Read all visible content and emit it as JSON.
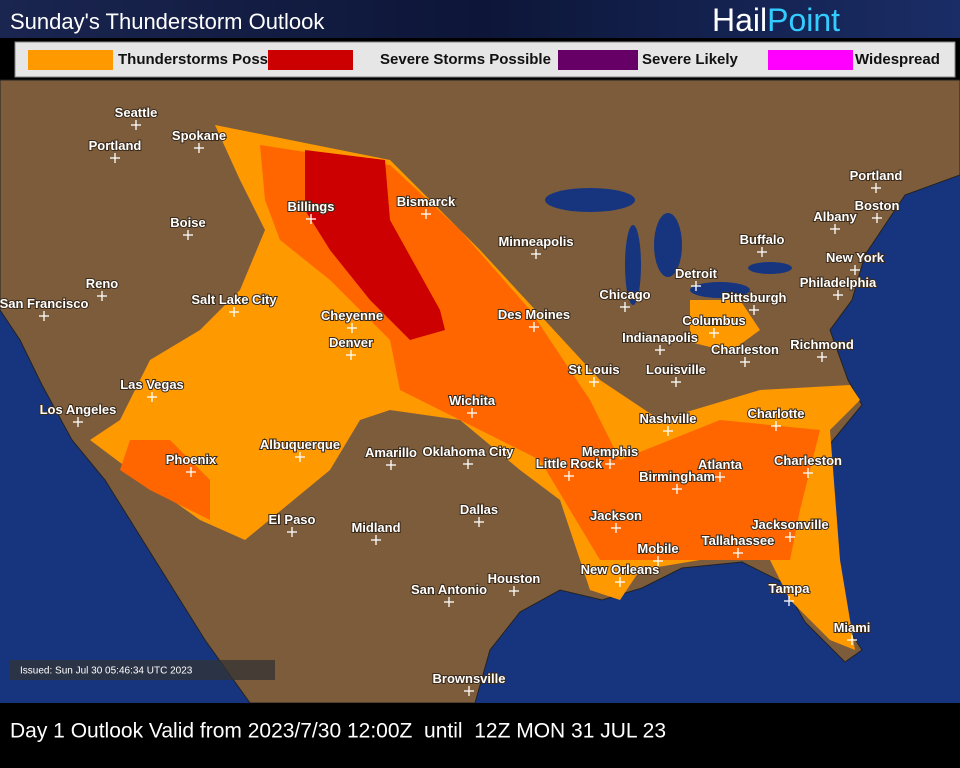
{
  "title": "Sunday's Thunderstorm Outlook",
  "logo": [
    "Hail",
    "Point"
  ],
  "legend": [
    {
      "name": "Thunderstorms Possible",
      "color": "#ff9900"
    },
    {
      "name": "Severe Storms Possible",
      "color": "#cc0000"
    },
    {
      "name": "Severe Likely",
      "color": "#660066"
    },
    {
      "name": "Widespread",
      "color": "#ff00ff"
    }
  ],
  "cities": [
    "Seattle",
    "Portland",
    "Spokane",
    "Boise",
    "Reno",
    "San Francisco",
    "Salt Lake City",
    "Billings",
    "Bismarck",
    "Minneapolis",
    "Cheyenne",
    "Denver",
    "Las Vegas",
    "Los Angeles",
    "Phoenix",
    "Albuquerque",
    "El Paso",
    "Amarillo",
    "Oklahoma City",
    "Wichita",
    "Des Moines",
    "Chicago",
    "Detroit",
    "Pittsburgh",
    "Buffalo",
    "Albany",
    "Boston",
    "Portland",
    "New York",
    "Philadelphia",
    "Columbus",
    "Indianapolis",
    "Charleston",
    "Richmond",
    "Louisville",
    "St Louis",
    "Nashville",
    "Charlotte",
    "Memphis",
    "Little Rock",
    "Birmingham",
    "Atlanta",
    "Charleston",
    "Jackson",
    "Mobile",
    "Tallahassee",
    "Jacksonville",
    "New Orleans",
    "Tampa",
    "Miami",
    "Dallas",
    "Midland",
    "Houston",
    "San Antonio",
    "Brownsville"
  ],
  "issued": "Issued: Sun Jul 30 05:46:34 UTC 2023",
  "footer": "Day 1 Outlook Valid from 2023/7/30 12:00Z  until  12Z MON 31 JUL 23"
}
